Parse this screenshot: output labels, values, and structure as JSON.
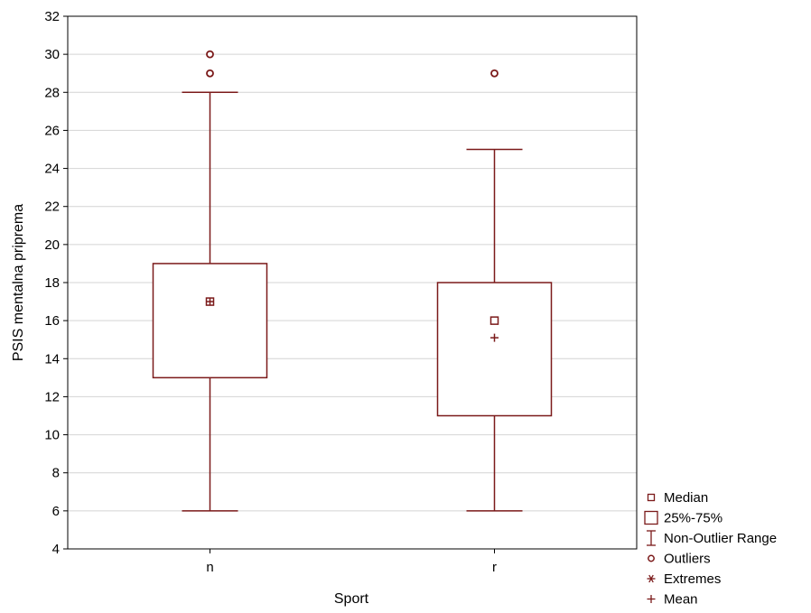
{
  "chart_data": {
    "type": "boxplot",
    "title": "",
    "xlabel": "Sport",
    "ylabel": "PSIS mentalna priprema",
    "ylim": [
      4,
      32
    ],
    "yticks": [
      4,
      6,
      8,
      10,
      12,
      14,
      16,
      18,
      20,
      22,
      24,
      26,
      28,
      30,
      32
    ],
    "grid": true,
    "color": "#7b1a1a",
    "categories": [
      "n",
      "r"
    ],
    "boxes": [
      {
        "category": "n",
        "whisker_low": 6,
        "q1": 13,
        "median": 17,
        "q3": 19,
        "whisker_high": 28,
        "mean": 17,
        "outliers": [
          29,
          30
        ],
        "extremes": []
      },
      {
        "category": "r",
        "whisker_low": 6,
        "q1": 11,
        "median": 16,
        "q3": 18,
        "whisker_high": 25,
        "mean": 15.1,
        "outliers": [
          29
        ],
        "extremes": []
      }
    ],
    "legend": {
      "placement": "bottom-right",
      "entries": [
        {
          "icon": "median-square-icon",
          "label": "Median"
        },
        {
          "icon": "box-icon",
          "label": "25%-75%"
        },
        {
          "icon": "whisker-icon",
          "label": "Non-Outlier Range"
        },
        {
          "icon": "circle-icon",
          "label": "Outliers"
        },
        {
          "icon": "asterisk-icon",
          "label": "Extremes"
        },
        {
          "icon": "plus-icon",
          "label": "Mean"
        }
      ]
    }
  }
}
